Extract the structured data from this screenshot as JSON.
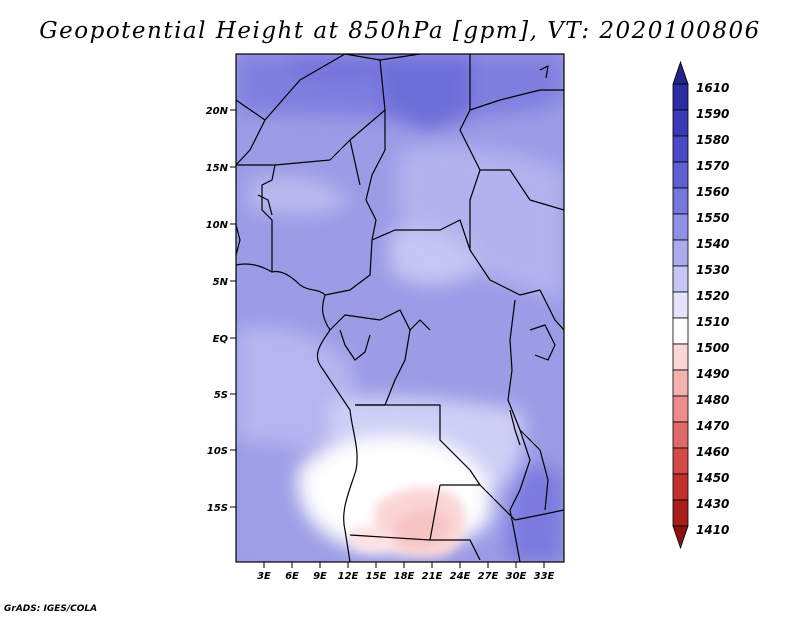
{
  "title": "Geopotential Height at 850hPa [gpm], VT: 2020100806",
  "credit": "GrADS: IGES/COLA",
  "map": {
    "variable": "Geopotential Height",
    "level": "850hPa",
    "units": "gpm",
    "valid_time": "2020100806",
    "lat_labels": [
      "20N",
      "15N",
      "10N",
      "5N",
      "EQ",
      "5S",
      "10S",
      "15S"
    ],
    "lon_labels": [
      "3E",
      "6E",
      "9E",
      "12E",
      "15E",
      "18E",
      "21E",
      "24E",
      "27E",
      "30E",
      "33E"
    ]
  },
  "colorbar": {
    "levels": [
      "1610",
      "1590",
      "1580",
      "1570",
      "1560",
      "1550",
      "1540",
      "1530",
      "1520",
      "1510",
      "1500",
      "1490",
      "1480",
      "1470",
      "1460",
      "1450",
      "1430",
      "1410"
    ],
    "colors_top_to_bottom": [
      "#23238e",
      "#2c2ca4",
      "#3a3ab8",
      "#4a4ac6",
      "#5f5fd2",
      "#7676dc",
      "#9090e4",
      "#ababec",
      "#c7c7f4",
      "#e4e4fa",
      "#ffffff",
      "#fbd6d6",
      "#f5b0b0",
      "#ec8c8c",
      "#e06868",
      "#d34848",
      "#c22f2f",
      "#a91d1d",
      "#8c1212"
    ]
  }
}
